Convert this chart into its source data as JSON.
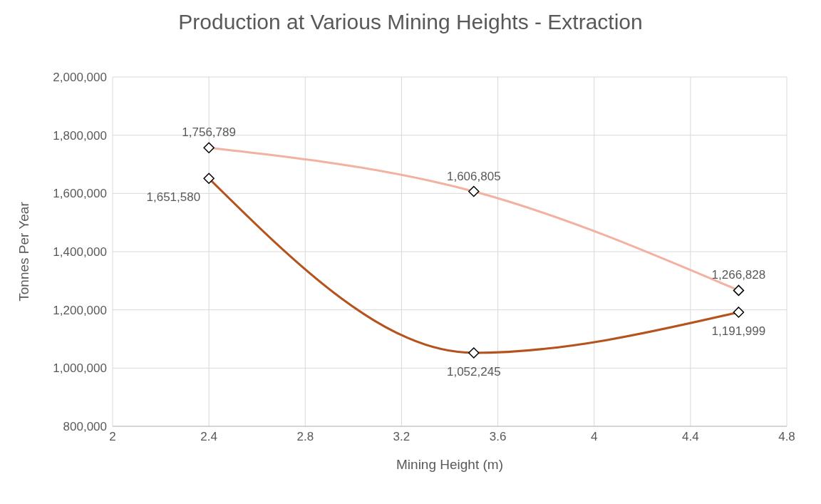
{
  "chart_data": {
    "type": "line",
    "title": "Production at Various Mining Heights - Extraction",
    "xlabel": "Mining Height (m)",
    "ylabel": "Tonnes Per Year",
    "x": [
      2.4,
      3.5,
      4.6
    ],
    "series": [
      {
        "color": "#f2b1a1",
        "values": [
          1756789,
          1606805,
          1266828
        ],
        "value_labels": [
          "1,756,789",
          "1,606,805",
          "1,266,828"
        ]
      },
      {
        "color": "#b4531e",
        "values": [
          1651580,
          1052245,
          1191999
        ],
        "value_labels": [
          "1,651,580",
          "1,052,245",
          "1,191,999"
        ]
      }
    ],
    "xlim": [
      2,
      4.8
    ],
    "xticks": [
      2,
      2.4,
      2.8,
      3.2,
      3.6,
      4,
      4.4,
      4.8
    ],
    "ylim": [
      800000,
      2000000
    ],
    "yticks": [
      {
        "value": 800000,
        "label": "800,000"
      },
      {
        "value": 1000000,
        "label": "1,000,000"
      },
      {
        "value": 1200000,
        "label": "1,200,000"
      },
      {
        "value": 1400000,
        "label": "1,400,000"
      },
      {
        "value": 1600000,
        "label": "1,600,000"
      },
      {
        "value": 1800000,
        "label": "1,800,000"
      },
      {
        "value": 2000000,
        "label": "2,000,000"
      }
    ],
    "grid": true,
    "marker": "diamond",
    "line_style": "solid"
  }
}
